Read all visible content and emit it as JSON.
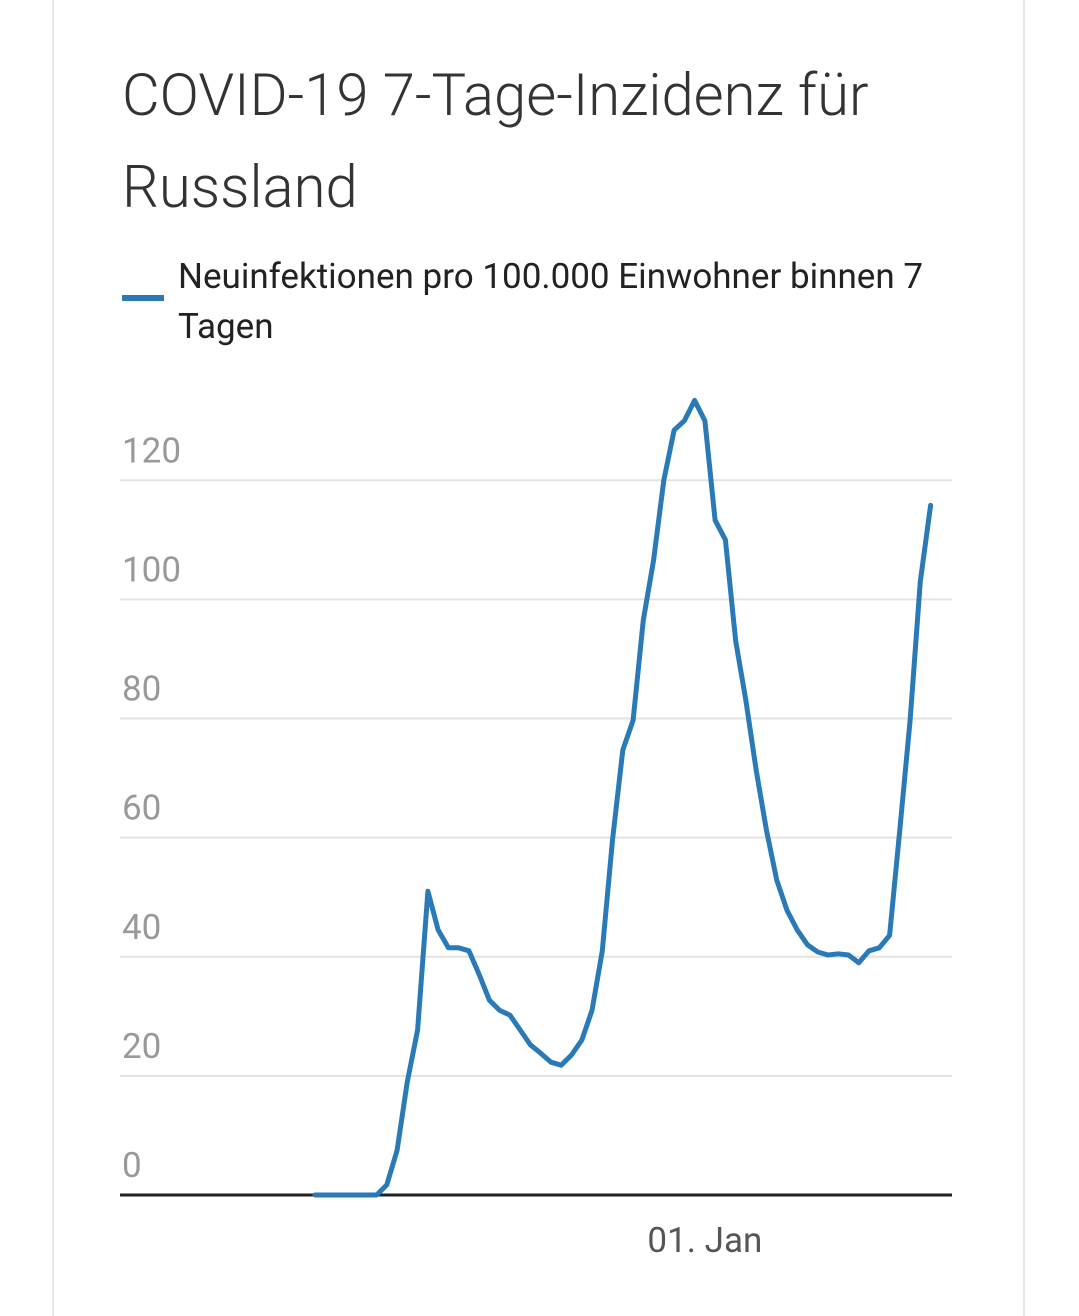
{
  "chart_data": {
    "type": "line",
    "title": "COVID-19 7-Tage-Inzidenz für Russland",
    "categories": [
      null,
      null,
      null,
      null,
      null,
      null,
      null,
      null,
      null,
      null,
      null,
      null,
      null,
      null,
      null,
      null,
      null,
      null,
      null,
      null,
      null,
      null,
      null,
      null,
      null,
      null,
      null,
      null,
      null,
      null,
      null,
      null,
      null,
      null,
      null,
      null,
      null,
      null,
      "01. Jan",
      null,
      null,
      null,
      null,
      null,
      null,
      null,
      null,
      null,
      null,
      null,
      null,
      null,
      null,
      null,
      null,
      null,
      null,
      null,
      null,
      null,
      null
    ],
    "series": [
      {
        "name": "Neuinfektionen pro 100.000 Einwohner binnen 7 Tagen",
        "color": "#2a7ab8",
        "values": [
          0,
          0,
          0,
          0,
          0,
          0,
          0,
          1.7,
          7.5,
          19,
          27.7,
          51,
          44.5,
          41.5,
          41.5,
          41,
          37,
          32.7,
          31,
          30.2,
          27.7,
          25.2,
          23.8,
          22.3,
          21.8,
          23.5,
          26,
          31,
          41,
          59.6,
          74.7,
          79.7,
          96.5,
          106.6,
          120,
          128.4,
          130,
          133.4,
          130,
          113.3,
          110,
          93,
          83,
          71.3,
          61.3,
          52.9,
          47.8,
          44.5,
          42,
          40.8,
          40.3,
          40.5,
          40.3,
          39,
          41,
          41.5,
          43.6,
          61.3,
          79.7,
          103,
          115.8
        ]
      }
    ],
    "ylim": [
      0,
      137
    ],
    "yticks": [
      0,
      20,
      40,
      60,
      80,
      100,
      120
    ],
    "grid": true
  }
}
